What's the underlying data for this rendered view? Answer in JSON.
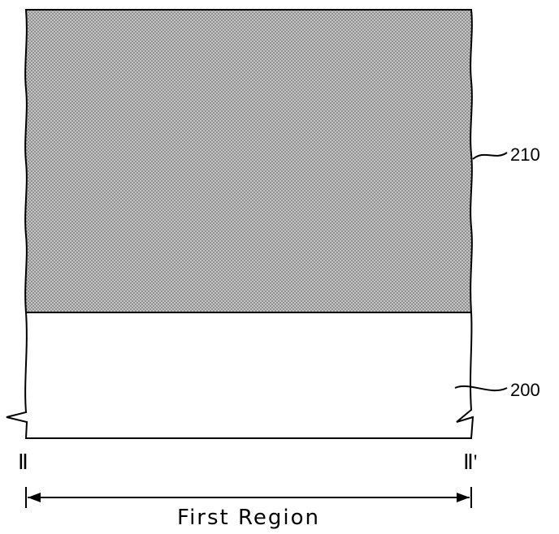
{
  "layers": {
    "upper": {
      "ref": "210",
      "fill": "#bdbdbd",
      "dot": "#555555"
    },
    "lower": {
      "ref": "200",
      "fill": "#ffffff"
    }
  },
  "section": {
    "start": "Ⅱ",
    "end": "Ⅱ'"
  },
  "region": {
    "label": "First Region"
  },
  "colors": {
    "line": "#000000"
  }
}
